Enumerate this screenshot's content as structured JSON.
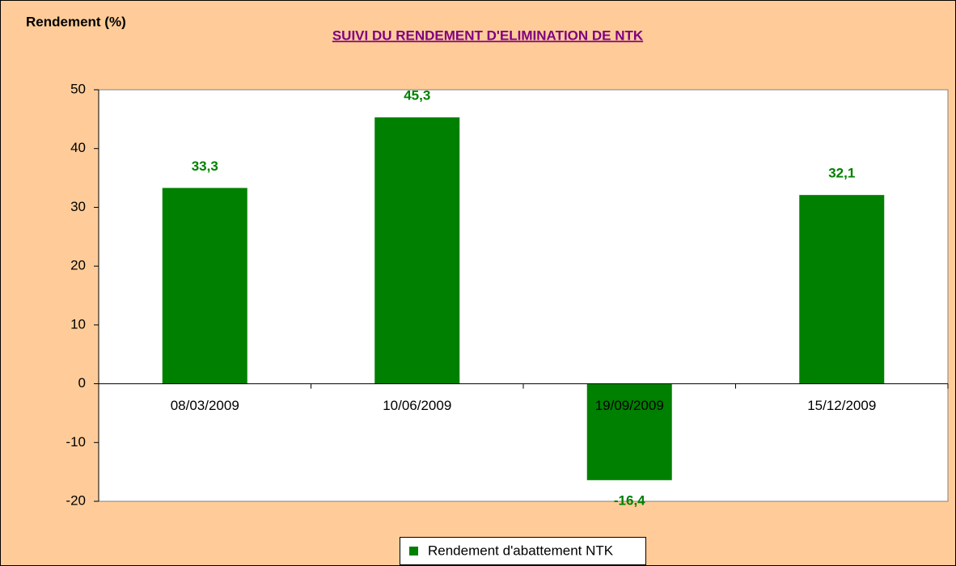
{
  "chart_data": {
    "type": "bar",
    "title": "SUIVI DU RENDEMENT D'ELIMINATION DE NTK",
    "y_label": "Rendement (%)",
    "categories": [
      "08/03/2009",
      "10/06/2009",
      "19/09/2009",
      "15/12/2009"
    ],
    "series": [
      {
        "name": "Rendement d'abattement NTK",
        "color": "#008000",
        "values": [
          33.3,
          45.3,
          -16.4,
          32.1
        ],
        "value_labels": [
          "33,3",
          "45,3",
          "-16,4",
          "32,1"
        ]
      }
    ],
    "ylim": [
      -20,
      50
    ],
    "yticks": [
      -20,
      -10,
      0,
      10,
      20,
      30,
      40,
      50
    ],
    "legend": "bottom"
  }
}
